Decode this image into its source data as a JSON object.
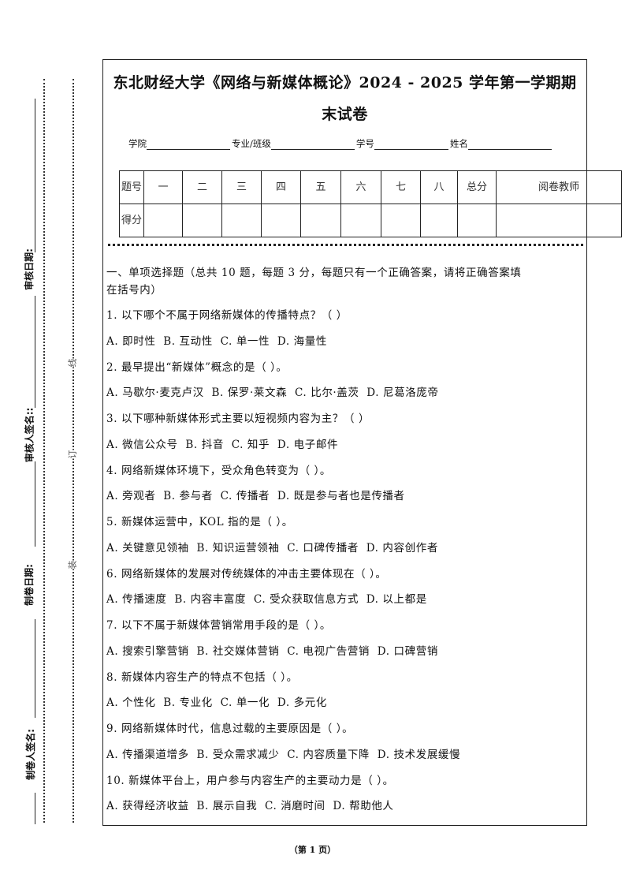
{
  "margin": {
    "labels": [
      "审核日期:",
      "审核人签名::",
      "制卷日期:",
      "制卷人签名:"
    ],
    "binding_chars": [
      "线",
      "订",
      "装"
    ]
  },
  "title": {
    "line1": "东北财经大学《网络与新媒体概论》2024 - 2025 学年第一学期期",
    "line2": "末试卷"
  },
  "info": {
    "college": "学院",
    "major": "专业/班级",
    "student_id": "学号",
    "name": "姓名"
  },
  "score_table": {
    "row1_label": "题号",
    "columns": [
      "一",
      "二",
      "三",
      "四",
      "五",
      "六",
      "七",
      "八",
      "总分",
      "阅卷教师"
    ],
    "row2_label": "得分"
  },
  "section1": {
    "heading_line1": "一、单项选择题（总共 10 题，每题 3 分，每题只有一个正确答案，请将正确答案填",
    "heading_line2": "在括号内）"
  },
  "questions": [
    {
      "q": "1. 以下哪个不属于网络新媒体的传播特点？（   ）",
      "options": "A. 即时性  B. 互动性  C. 单一性  D. 海量性"
    },
    {
      "q": "2. 最早提出“新媒体”概念的是（   ）。",
      "options": "A. 马歇尔·麦克卢汉  B. 保罗·莱文森  C. 比尔·盖茨  D. 尼葛洛庞帝"
    },
    {
      "q": "3. 以下哪种新媒体形式主要以短视频内容为主？（   ）",
      "options": "A. 微信公众号  B. 抖音  C. 知乎  D. 电子邮件"
    },
    {
      "q": "4. 网络新媒体环境下，受众角色转变为（   ）。",
      "options": "A. 旁观者  B. 参与者  C. 传播者  D. 既是参与者也是传播者"
    },
    {
      "q": "5. 新媒体运营中，KOL 指的是（   ）。",
      "options": "A. 关键意见领袖  B. 知识运营领袖  C. 口碑传播者  D. 内容创作者"
    },
    {
      "q": "6. 网络新媒体的发展对传统媒体的冲击主要体现在（   ）。",
      "options": "A. 传播速度  B. 内容丰富度  C. 受众获取信息方式  D. 以上都是"
    },
    {
      "q": "7. 以下不属于新媒体营销常用手段的是（   ）。",
      "options": "A. 搜索引擎营销  B. 社交媒体营销  C. 电视广告营销  D. 口碑营销"
    },
    {
      "q": "8. 新媒体内容生产的特点不包括（   ）。",
      "options": "A. 个性化  B. 专业化  C. 单一化  D. 多元化"
    },
    {
      "q": "9. 网络新媒体时代，信息过载的主要原因是（   ）。",
      "options": "A. 传播渠道增多  B. 受众需求减少  C. 内容质量下降  D. 技术发展缓慢"
    },
    {
      "q": "10. 新媒体平台上，用户参与内容生产的主要动力是（   ）。",
      "options": "A. 获得经济收益  B. 展示自我  C. 消磨时间  D. 帮助他人"
    }
  ],
  "footer": "（第 1 页）"
}
